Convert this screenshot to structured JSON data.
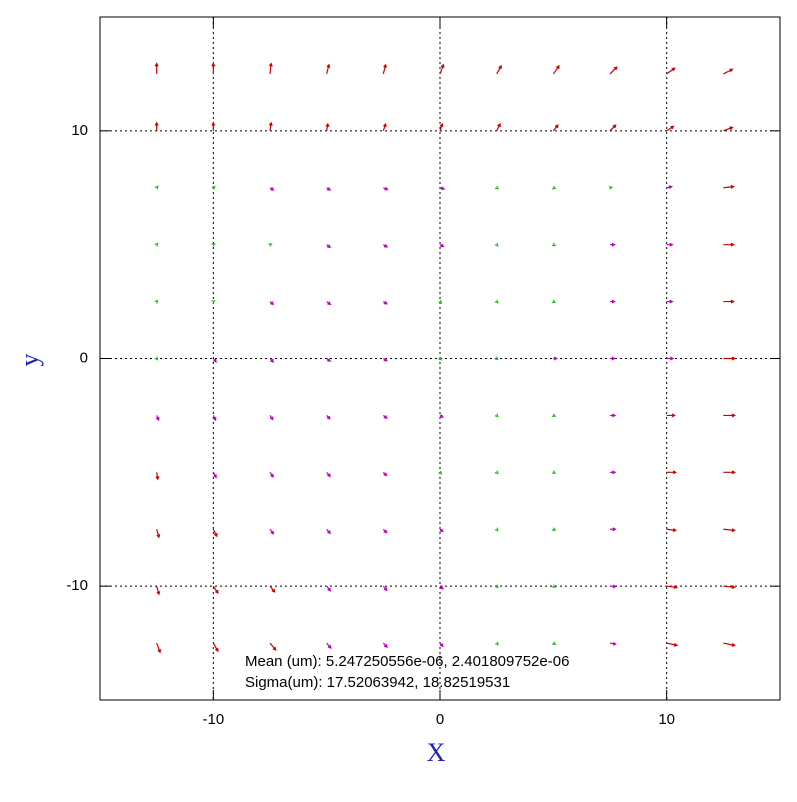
{
  "chart_data": {
    "type": "quiver",
    "xlabel": "X",
    "ylabel": "y",
    "xlim": [
      -15,
      15
    ],
    "ylim": [
      -15,
      15
    ],
    "xticks": [
      -10,
      0,
      10
    ],
    "yticks": [
      -10,
      0,
      10
    ],
    "grid": true,
    "annotations": [
      "Mean (um): 5.247250556e-06, 2.401809752e-06",
      "Sigma(um): 17.52063942, 18.82519531"
    ],
    "series": [
      {
        "color": "#d00000",
        "points": [
          [
            -12.5,
            12.5,
            0,
            0.45
          ],
          [
            -10,
            12.5,
            0,
            0.45
          ],
          [
            -7.5,
            12.5,
            0.05,
            0.45
          ],
          [
            -5,
            12.5,
            0.1,
            0.4
          ],
          [
            -2.5,
            12.5,
            0.1,
            0.4
          ],
          [
            0,
            12.5,
            0.15,
            0.4
          ],
          [
            2.5,
            12.5,
            0.2,
            0.35
          ],
          [
            5,
            12.5,
            0.25,
            0.35
          ],
          [
            7.5,
            12.5,
            0.3,
            0.3
          ],
          [
            10,
            12.5,
            0.35,
            0.25
          ],
          [
            12.5,
            12.5,
            0.4,
            0.2
          ],
          [
            -12.5,
            10,
            0,
            0.35
          ],
          [
            -10,
            10,
            0,
            0.35
          ],
          [
            -7.5,
            10,
            0.05,
            0.35
          ],
          [
            -5,
            10,
            0.05,
            0.3
          ],
          [
            -2.5,
            10,
            0.1,
            0.3
          ],
          [
            0,
            10,
            0.1,
            0.3
          ],
          [
            2.5,
            10,
            0.15,
            0.3
          ],
          [
            5,
            10,
            0.2,
            0.25
          ],
          [
            7.5,
            10,
            0.25,
            0.25
          ],
          [
            10,
            10,
            0.3,
            0.2
          ],
          [
            12.5,
            10,
            0.4,
            0.15
          ],
          [
            12.5,
            7.5,
            0.45,
            0.05
          ],
          [
            12.5,
            5,
            0.45,
            0
          ],
          [
            12.5,
            2.5,
            0.45,
            0
          ],
          [
            12.5,
            0,
            0.5,
            0
          ],
          [
            12.5,
            -2.5,
            0.5,
            0
          ],
          [
            12.5,
            -5,
            0.5,
            0
          ],
          [
            12.5,
            -7.5,
            0.5,
            -0.05
          ],
          [
            12.5,
            -10,
            0.5,
            -0.05
          ],
          [
            12.5,
            -12.5,
            0.5,
            -0.1
          ],
          [
            10,
            -2.5,
            0.35,
            0
          ],
          [
            10,
            -5,
            0.4,
            0
          ],
          [
            10,
            -7.5,
            0.4,
            -0.05
          ],
          [
            10,
            -10,
            0.45,
            -0.05
          ],
          [
            10,
            -12.5,
            0.45,
            -0.1
          ],
          [
            -12.5,
            -5,
            0.05,
            -0.3
          ],
          [
            -12.5,
            -7.5,
            0.1,
            -0.35
          ],
          [
            -12.5,
            -10,
            0.1,
            -0.35
          ],
          [
            -12.5,
            -12.5,
            0.15,
            -0.4
          ],
          [
            -10,
            -7.5,
            0.15,
            -0.3
          ],
          [
            -10,
            -10,
            0.2,
            -0.3
          ],
          [
            -10,
            -12.5,
            0.2,
            -0.35
          ],
          [
            -7.5,
            -10,
            0.2,
            -0.25
          ],
          [
            -7.5,
            -12.5,
            0.25,
            -0.3
          ]
        ]
      },
      {
        "color": "#c000c0",
        "points": [
          [
            -7.5,
            7.5,
            0.15,
            -0.1
          ],
          [
            -5,
            7.5,
            0.15,
            -0.1
          ],
          [
            -2.5,
            7.5,
            0.18,
            -0.08
          ],
          [
            0,
            7.5,
            0.18,
            -0.05
          ],
          [
            10,
            7.5,
            0.22,
            0.05
          ],
          [
            -5,
            5,
            0.15,
            -0.12
          ],
          [
            -2.5,
            5,
            0.16,
            -0.1
          ],
          [
            0,
            5,
            0.15,
            -0.08
          ],
          [
            7.5,
            5,
            0.2,
            0
          ],
          [
            10,
            5,
            0.25,
            0
          ],
          [
            -7.5,
            2.5,
            0.14,
            -0.12
          ],
          [
            -5,
            2.5,
            0.16,
            -0.12
          ],
          [
            -2.5,
            2.5,
            0.15,
            -0.1
          ],
          [
            7.5,
            2.5,
            0.2,
            0
          ],
          [
            10,
            2.5,
            0.25,
            0
          ],
          [
            -10,
            0,
            0.12,
            -0.15
          ],
          [
            -7.5,
            0,
            0.14,
            -0.15
          ],
          [
            -5,
            0,
            0.15,
            -0.12
          ],
          [
            -2.5,
            0,
            0.15,
            -0.1
          ],
          [
            5,
            0,
            0.15,
            0
          ],
          [
            7.5,
            0,
            0.2,
            0
          ],
          [
            10,
            0,
            0.28,
            0
          ],
          [
            -12.5,
            -2.5,
            0.08,
            -0.2
          ],
          [
            -10,
            -2.5,
            0.1,
            -0.2
          ],
          [
            -7.5,
            -2.5,
            0.12,
            -0.18
          ],
          [
            -5,
            -2.5,
            0.14,
            -0.15
          ],
          [
            -2.5,
            -2.5,
            0.15,
            -0.12
          ],
          [
            0,
            -2.5,
            0.12,
            -0.08
          ],
          [
            7.5,
            -2.5,
            0.22,
            0
          ],
          [
            -10,
            -5,
            0.12,
            -0.22
          ],
          [
            -7.5,
            -5,
            0.14,
            -0.2
          ],
          [
            -5,
            -5,
            0.15,
            -0.18
          ],
          [
            -2.5,
            -5,
            0.14,
            -0.14
          ],
          [
            7.5,
            -5,
            0.22,
            0
          ],
          [
            -7.5,
            -7.5,
            0.15,
            -0.2
          ],
          [
            -5,
            -7.5,
            0.15,
            -0.18
          ],
          [
            -2.5,
            -7.5,
            0.14,
            -0.15
          ],
          [
            0,
            -7.5,
            0.12,
            -0.1
          ],
          [
            7.5,
            -7.5,
            0.24,
            0
          ],
          [
            -5,
            -10,
            0.16,
            -0.2
          ],
          [
            -2.5,
            -10,
            0.15,
            -0.18
          ],
          [
            0,
            -10,
            0.12,
            -0.12
          ],
          [
            7.5,
            -10,
            0.25,
            -0.02
          ],
          [
            -5,
            -12.5,
            0.18,
            -0.22
          ],
          [
            -2.5,
            -12.5,
            0.16,
            -0.18
          ],
          [
            0,
            -12.5,
            0.12,
            -0.14
          ],
          [
            7.5,
            -12.5,
            0.25,
            -0.05
          ]
        ]
      },
      {
        "color": "#20c020",
        "points": [
          [
            -12.5,
            7.5,
            0.05,
            0.06
          ],
          [
            -10,
            7.5,
            0.06,
            0.05
          ],
          [
            2.5,
            7.5,
            0.06,
            -0.04
          ],
          [
            5,
            7.5,
            0.08,
            -0.03
          ],
          [
            7.5,
            7.5,
            0.08,
            0.02
          ],
          [
            -12.5,
            5,
            0.04,
            0.05
          ],
          [
            -10,
            5,
            0.05,
            0.04
          ],
          [
            -7.5,
            5,
            0.06,
            0.03
          ],
          [
            2.5,
            5,
            0.05,
            -0.05
          ],
          [
            5,
            5,
            0.07,
            -0.04
          ],
          [
            -12.5,
            2.5,
            0.04,
            0.04
          ],
          [
            -10,
            2.5,
            0.05,
            0.03
          ],
          [
            0,
            2.5,
            0.06,
            -0.06
          ],
          [
            2.5,
            2.5,
            0.05,
            -0.05
          ],
          [
            5,
            2.5,
            0.07,
            -0.03
          ],
          [
            -12.5,
            0,
            0.03,
            -0.05
          ],
          [
            0,
            0,
            0.06,
            -0.05
          ],
          [
            2.5,
            0,
            0.05,
            -0.04
          ],
          [
            2.5,
            -2.5,
            0.05,
            -0.05
          ],
          [
            5,
            -2.5,
            0.07,
            -0.04
          ],
          [
            0,
            -5,
            0.06,
            -0.06
          ],
          [
            2.5,
            -5,
            0.05,
            -0.05
          ],
          [
            5,
            -5,
            0.07,
            -0.04
          ],
          [
            2.5,
            -7.5,
            0.05,
            -0.06
          ],
          [
            5,
            -7.5,
            0.07,
            -0.05
          ],
          [
            2.5,
            -10,
            0.05,
            -0.06
          ],
          [
            5,
            -10,
            0.07,
            -0.05
          ],
          [
            2.5,
            -12.5,
            0.06,
            -0.07
          ],
          [
            5,
            -12.5,
            0.08,
            -0.06
          ]
        ]
      }
    ]
  }
}
